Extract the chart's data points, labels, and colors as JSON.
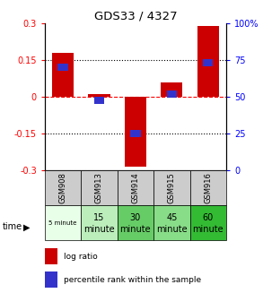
{
  "title": "GDS33 / 4327",
  "samples": [
    "GSM908",
    "GSM913",
    "GSM914",
    "GSM915",
    "GSM916"
  ],
  "log_ratios": [
    0.18,
    0.01,
    -0.285,
    0.06,
    0.29
  ],
  "percentile_ranks": [
    0.12,
    -0.015,
    -0.15,
    0.01,
    0.14
  ],
  "time_labels_row1": [
    "",
    "15",
    "30",
    "45",
    "60"
  ],
  "time_labels_row2": [
    "5 minute",
    "minute",
    "minute",
    "minute",
    "minute"
  ],
  "time_bg_colors": [
    "#e8ffe8",
    "#bbeebb",
    "#66cc66",
    "#88dd88",
    "#33bb33"
  ],
  "sample_bg_color": "#cccccc",
  "bar_color_red": "#cc0000",
  "bar_color_blue": "#3333cc",
  "ylim": [
    -0.3,
    0.3
  ],
  "yticks_left": [
    -0.3,
    -0.15,
    0,
    0.15,
    0.3
  ],
  "yticks_right": [
    0,
    25,
    50,
    75,
    100
  ],
  "legend_red": "log ratio",
  "legend_blue": "percentile rank within the sample",
  "figsize": [
    2.93,
    3.27
  ],
  "dpi": 100
}
